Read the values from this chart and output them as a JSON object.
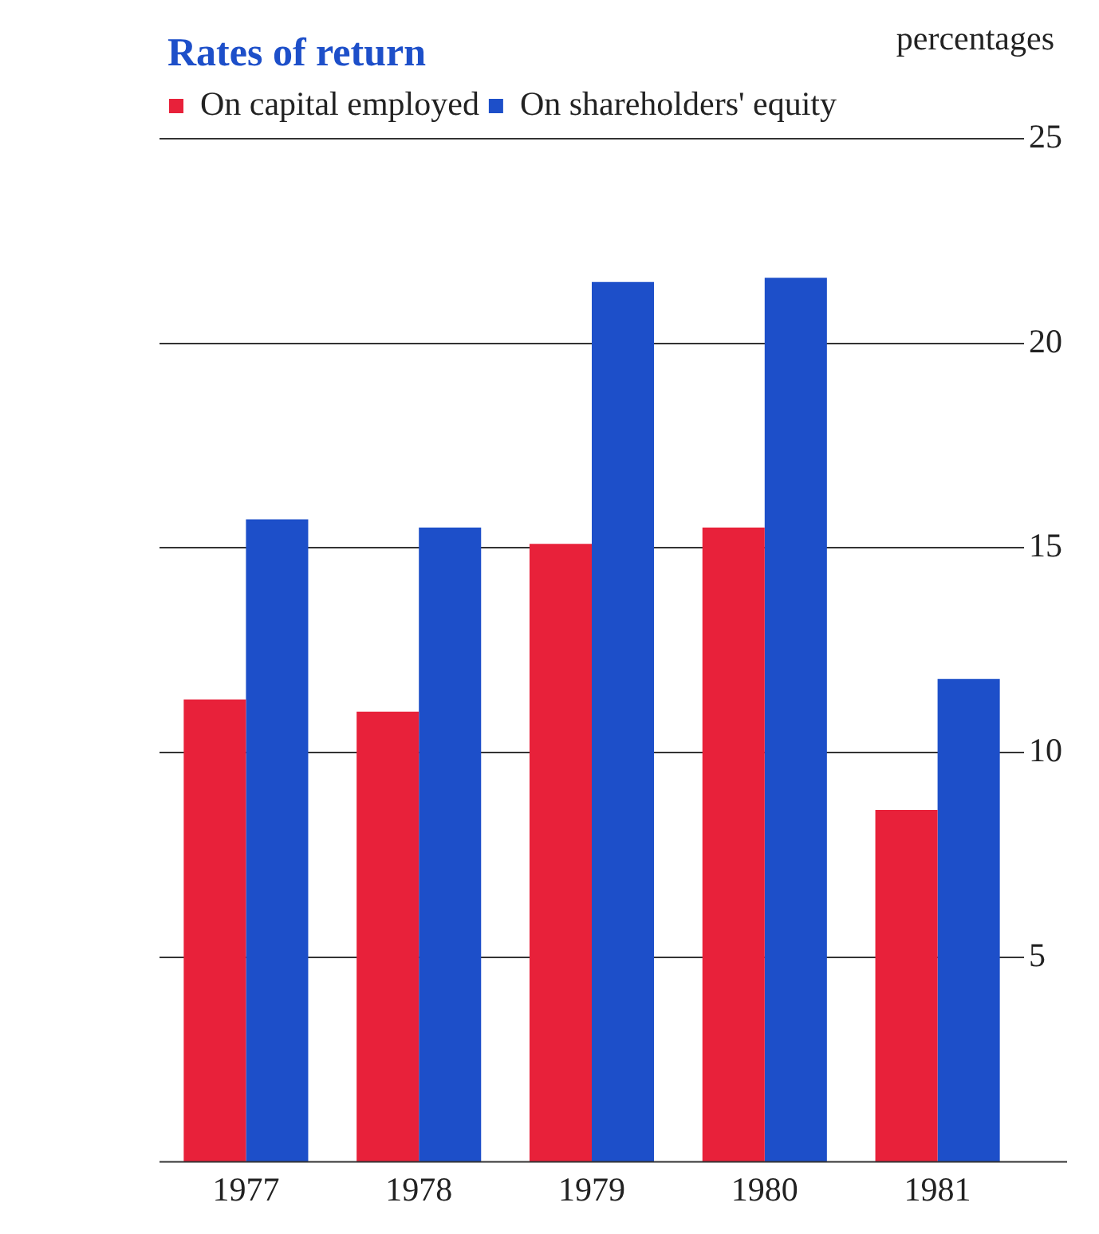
{
  "chart_data": {
    "type": "bar",
    "title": "Rates of return",
    "ylabel": "percentages",
    "categories": [
      "1977",
      "1978",
      "1979",
      "1980",
      "1981"
    ],
    "series": [
      {
        "name": "On capital employed",
        "color": "#e8213a",
        "values": [
          11.3,
          11.0,
          15.1,
          15.5,
          8.6
        ]
      },
      {
        "name": "On shareholders' equity",
        "color": "#1d4fc9",
        "values": [
          15.7,
          15.5,
          21.5,
          21.6,
          11.8
        ]
      }
    ],
    "ylim": [
      0,
      25
    ],
    "yticks": [
      5,
      10,
      15,
      20,
      25
    ],
    "grid": "y",
    "legend": "top left"
  }
}
